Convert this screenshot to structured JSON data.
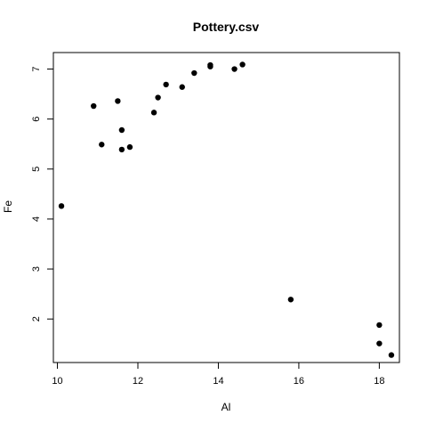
{
  "chart_data": {
    "type": "scatter",
    "title": "Pottery.csv",
    "xlabel": "Al",
    "ylabel": "Fe",
    "xlim": [
      9.9,
      18.5
    ],
    "ylim": [
      1.13,
      7.33
    ],
    "x_ticks": [
      10,
      12,
      14,
      16,
      18
    ],
    "y_ticks": [
      2,
      3,
      4,
      5,
      6,
      7
    ],
    "grid": false,
    "legend": "none",
    "marker_color": "#000000",
    "points": [
      {
        "x": 10.1,
        "y": 4.26
      },
      {
        "x": 10.9,
        "y": 6.26
      },
      {
        "x": 11.1,
        "y": 5.49
      },
      {
        "x": 11.5,
        "y": 6.36
      },
      {
        "x": 11.6,
        "y": 5.78
      },
      {
        "x": 11.6,
        "y": 5.39
      },
      {
        "x": 11.8,
        "y": 5.44
      },
      {
        "x": 12.4,
        "y": 6.13
      },
      {
        "x": 12.5,
        "y": 6.43
      },
      {
        "x": 12.7,
        "y": 6.69
      },
      {
        "x": 13.1,
        "y": 6.64
      },
      {
        "x": 13.4,
        "y": 6.92
      },
      {
        "x": 13.8,
        "y": 7.05
      },
      {
        "x": 13.8,
        "y": 7.08
      },
      {
        "x": 14.4,
        "y": 7.0
      },
      {
        "x": 14.6,
        "y": 7.09
      },
      {
        "x": 15.8,
        "y": 2.39
      },
      {
        "x": 18.0,
        "y": 1.88
      },
      {
        "x": 18.0,
        "y": 1.51
      },
      {
        "x": 18.3,
        "y": 1.28
      }
    ]
  }
}
